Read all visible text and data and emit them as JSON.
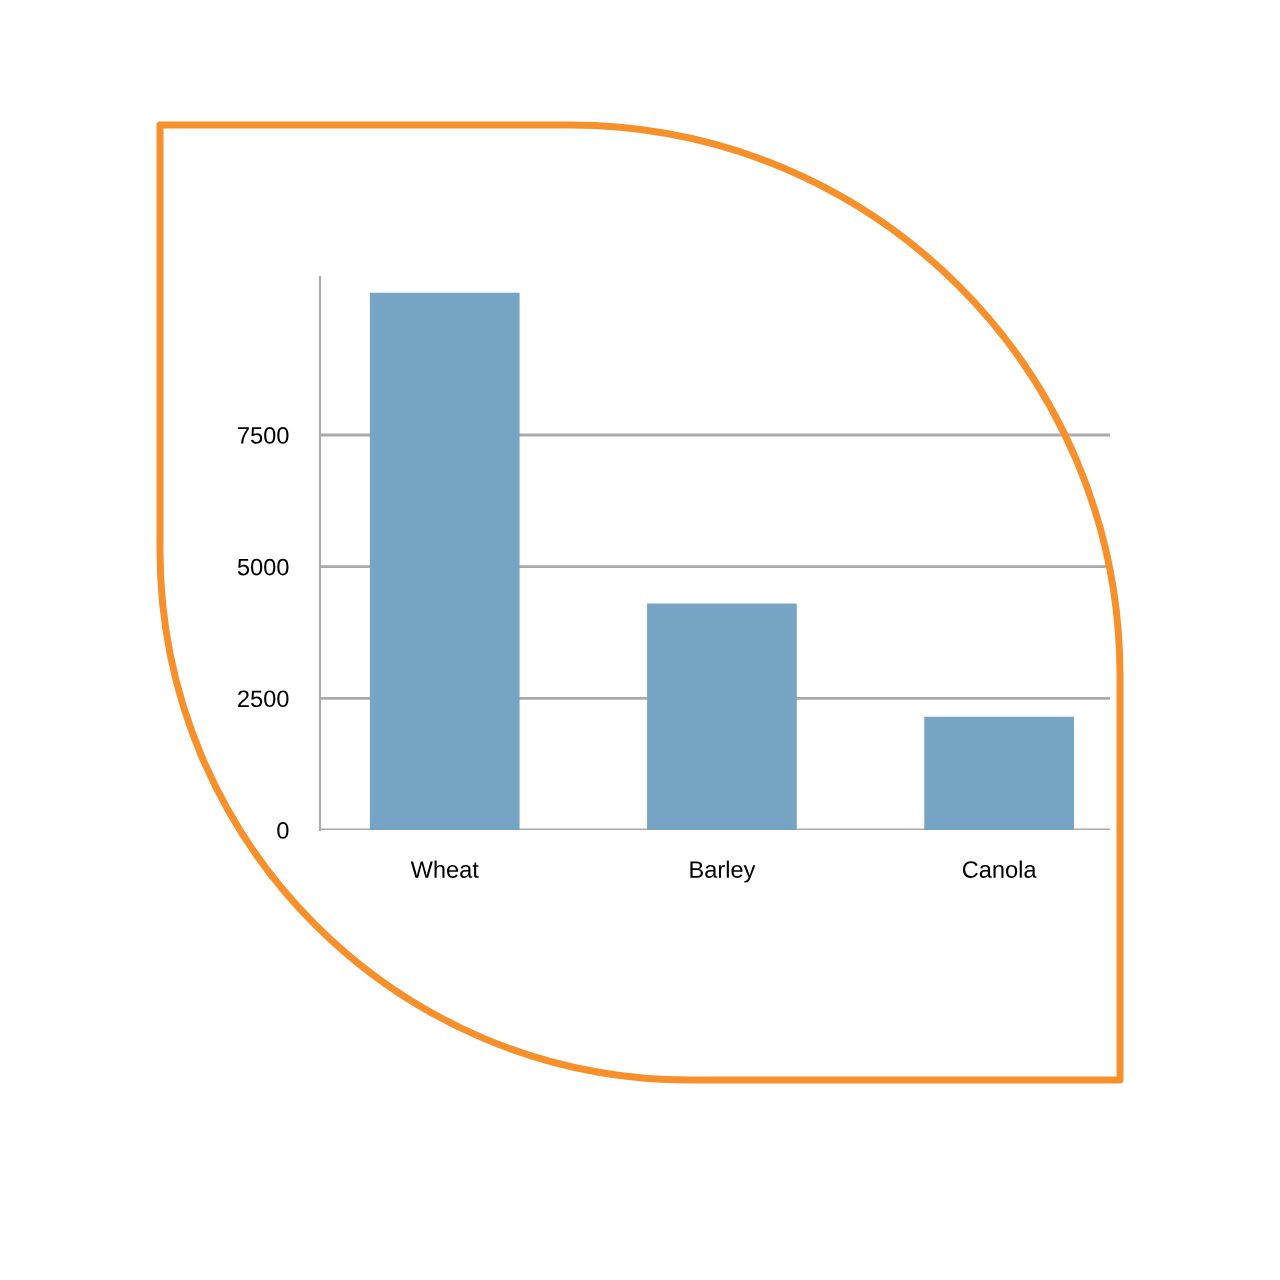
{
  "chart_data": {
    "type": "bar",
    "categories": [
      "Wheat",
      "Barley",
      "Canola"
    ],
    "values": [
      10200,
      4300,
      2150
    ],
    "color": "#76a4c4",
    "ylim": [
      0,
      10500
    ],
    "yticks": [
      0,
      2500,
      5000,
      7500
    ],
    "grid": "y"
  }
}
